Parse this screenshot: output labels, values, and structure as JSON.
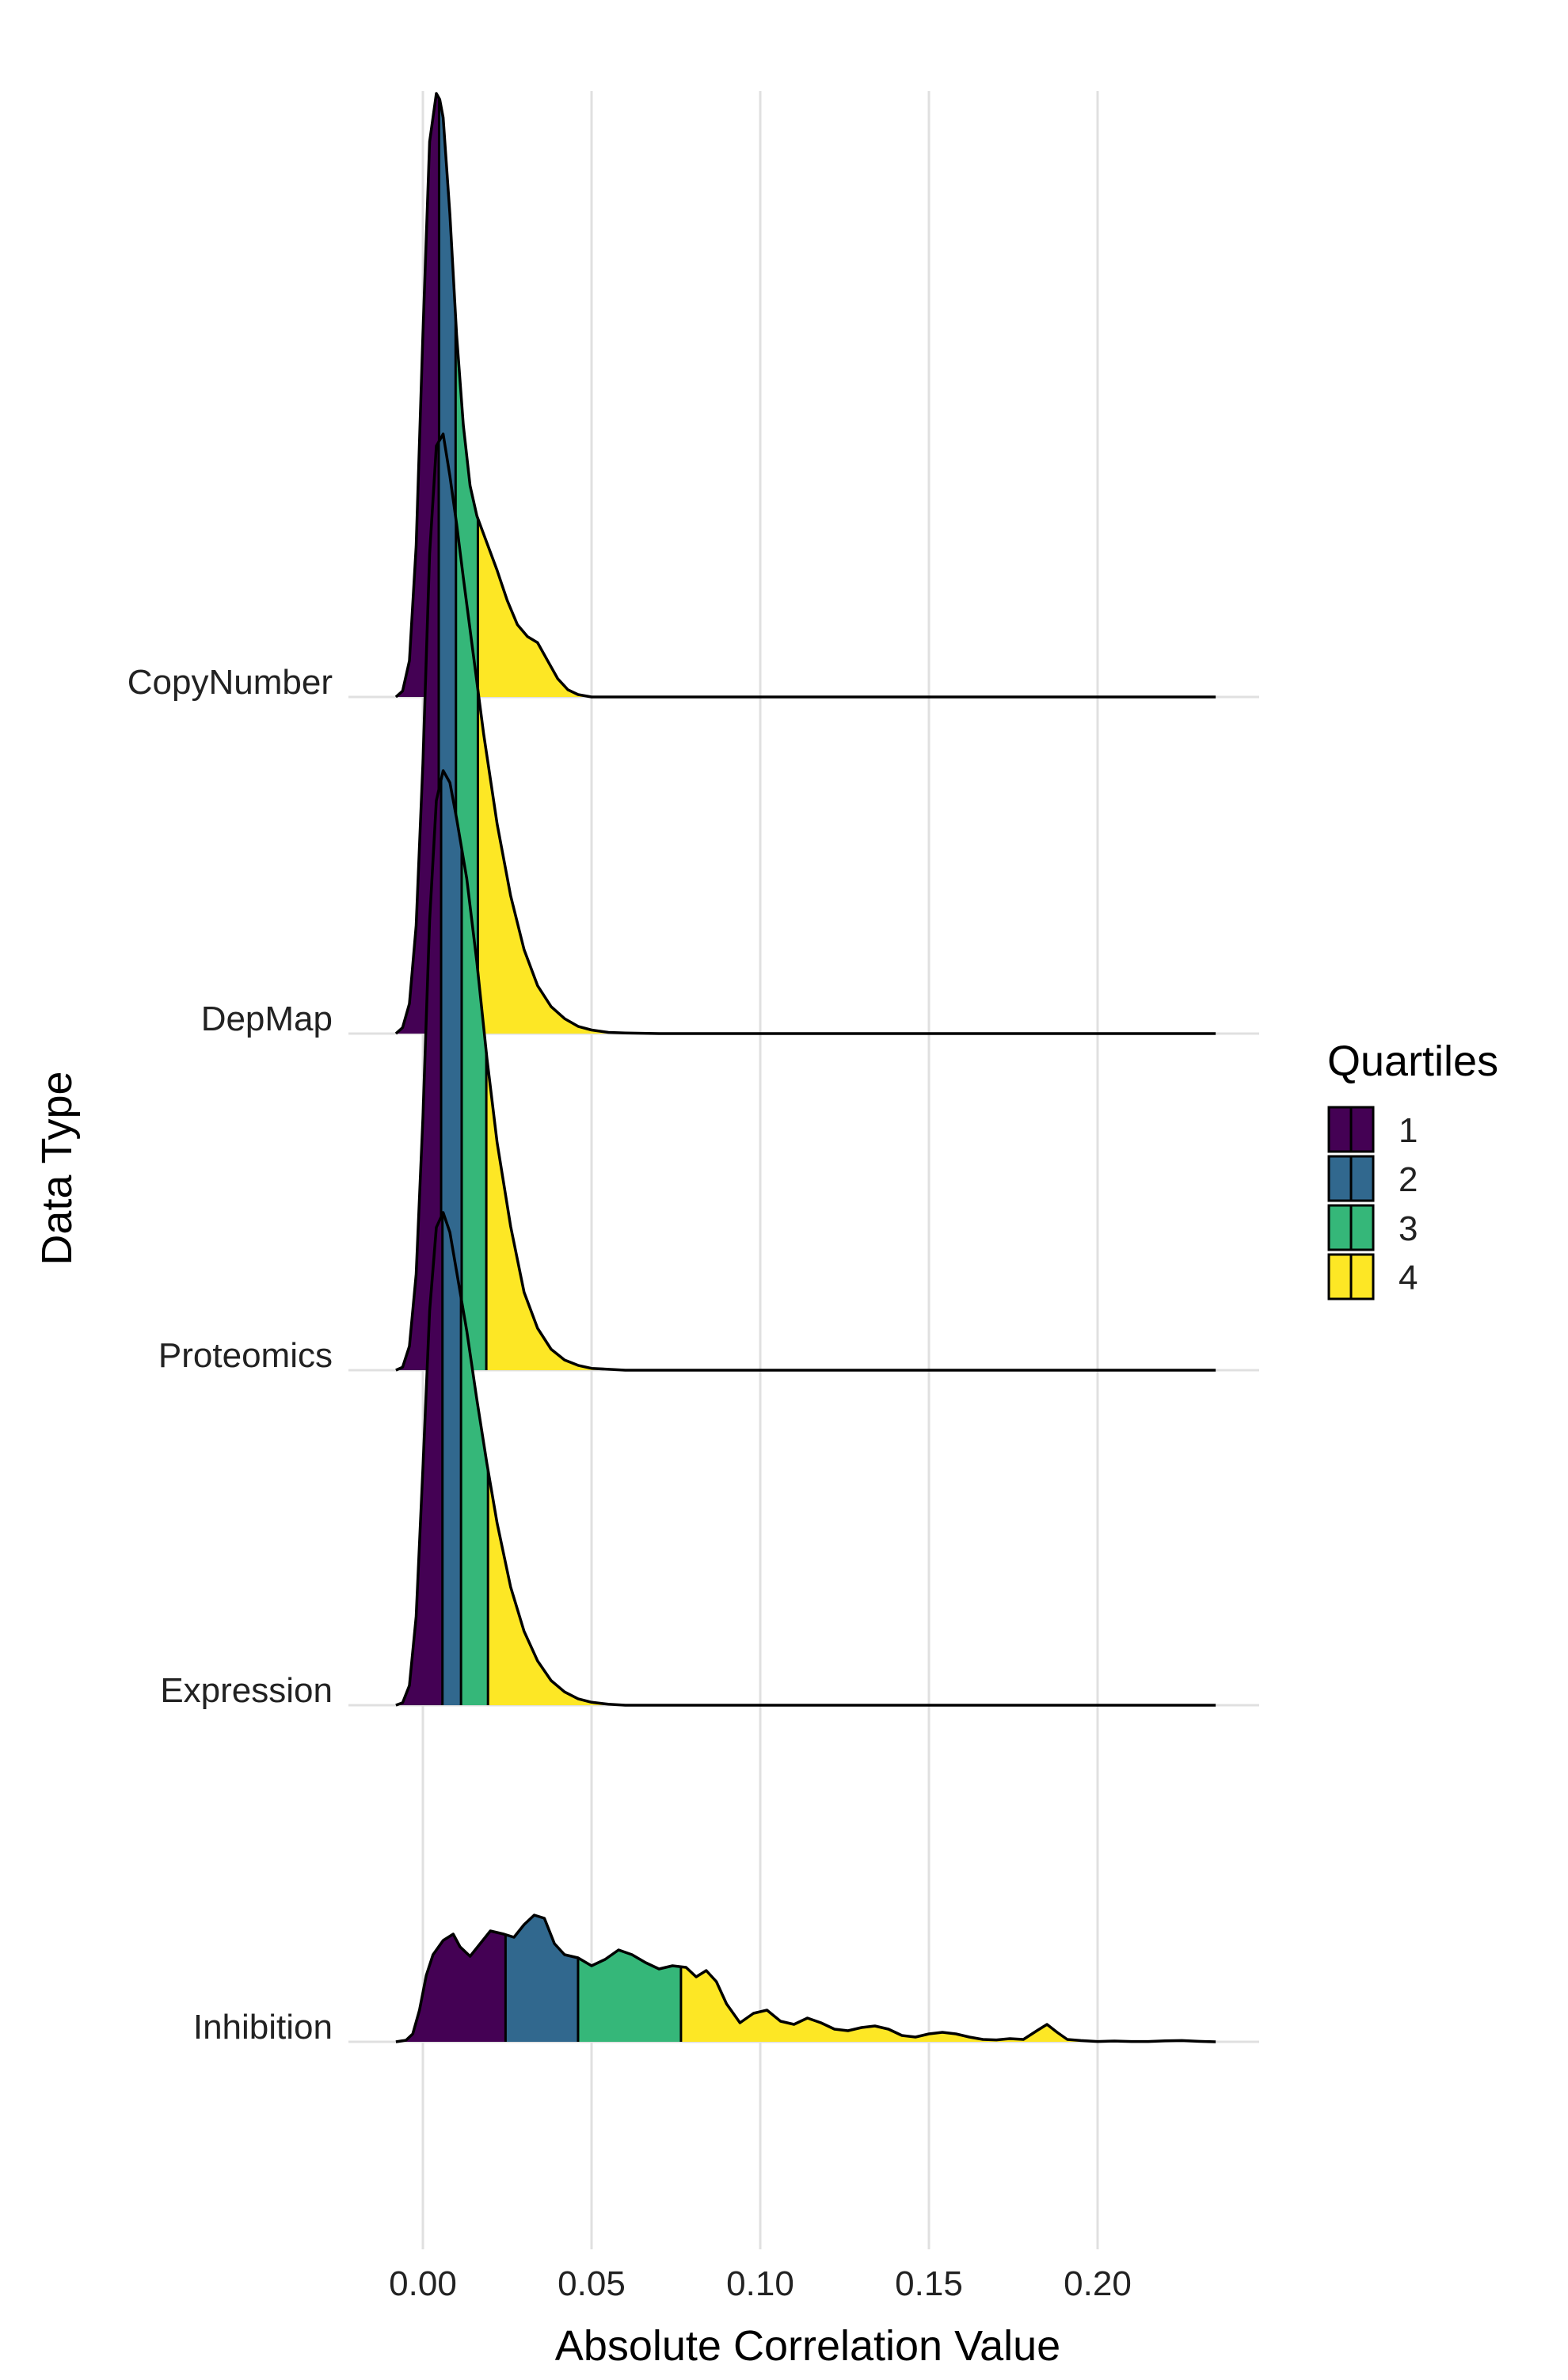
{
  "chart_data": {
    "type": "ridgeline",
    "title": "",
    "xlabel": "Absolute Correlation Value",
    "ylabel": "Data Type",
    "xlim": [
      -0.0085,
      0.2325
    ],
    "xticks": [
      0.0,
      0.05,
      0.1,
      0.15,
      0.2
    ],
    "xtick_labels": [
      "0.00",
      "0.05",
      "0.10",
      "0.15",
      "0.20"
    ],
    "grid": true,
    "legend": {
      "title": "Quartiles",
      "position": "right",
      "entries": [
        {
          "label": "1",
          "color": "#440154"
        },
        {
          "label": "2",
          "color": "#31688E"
        },
        {
          "label": "3",
          "color": "#35B779"
        },
        {
          "label": "4",
          "color": "#FDE725"
        }
      ]
    },
    "series": [
      {
        "name": "CopyNumber",
        "quartile_breaks": [
          0.0048,
          0.0097,
          0.0163
        ],
        "x": [
          -0.008,
          -0.006,
          -0.004,
          -0.002,
          0.0,
          0.002,
          0.004,
          0.005,
          0.006,
          0.008,
          0.01,
          0.012,
          0.014,
          0.016,
          0.018,
          0.02,
          0.022,
          0.025,
          0.028,
          0.031,
          0.034,
          0.037,
          0.04,
          0.043,
          0.046,
          0.05,
          0.06,
          0.1,
          0.15,
          0.2,
          0.235
        ],
        "y": [
          0.0,
          0.01,
          0.06,
          0.25,
          0.6,
          0.92,
          1.0,
          0.99,
          0.96,
          0.8,
          0.6,
          0.45,
          0.35,
          0.3,
          0.27,
          0.24,
          0.21,
          0.16,
          0.12,
          0.1,
          0.09,
          0.06,
          0.03,
          0.012,
          0.004,
          0.0,
          0.0,
          0.0,
          0.0,
          0.0,
          0.0
        ]
      },
      {
        "name": "DepMap",
        "quartile_breaks": [
          0.0047,
          0.0098,
          0.0163
        ],
        "x": [
          -0.008,
          -0.006,
          -0.004,
          -0.002,
          0.0,
          0.002,
          0.004,
          0.006,
          0.008,
          0.01,
          0.012,
          0.015,
          0.018,
          0.022,
          0.026,
          0.03,
          0.034,
          0.038,
          0.042,
          0.046,
          0.05,
          0.055,
          0.06,
          0.07,
          0.1,
          0.15,
          0.2,
          0.235
        ],
        "y": [
          0.0,
          0.01,
          0.05,
          0.18,
          0.45,
          0.8,
          0.98,
          1.0,
          0.93,
          0.85,
          0.76,
          0.63,
          0.5,
          0.35,
          0.23,
          0.14,
          0.08,
          0.045,
          0.025,
          0.012,
          0.006,
          0.002,
          0.001,
          0.0,
          0.0,
          0.0,
          0.0,
          0.0
        ]
      },
      {
        "name": "Proteomics",
        "quartile_breaks": [
          0.0054,
          0.0115,
          0.0188
        ],
        "x": [
          -0.008,
          -0.006,
          -0.004,
          -0.002,
          0.0,
          0.002,
          0.004,
          0.006,
          0.008,
          0.01,
          0.013,
          0.016,
          0.019,
          0.022,
          0.026,
          0.03,
          0.034,
          0.038,
          0.042,
          0.046,
          0.05,
          0.06,
          0.1,
          0.15,
          0.2,
          0.235
        ],
        "y": [
          0.0,
          0.005,
          0.04,
          0.16,
          0.42,
          0.75,
          0.95,
          1.0,
          0.98,
          0.92,
          0.82,
          0.68,
          0.52,
          0.38,
          0.24,
          0.13,
          0.07,
          0.035,
          0.017,
          0.008,
          0.003,
          0.0,
          0.0,
          0.0,
          0.0,
          0.0
        ]
      },
      {
        "name": "Expression",
        "quartile_breaks": [
          0.0058,
          0.0113,
          0.0193
        ],
        "x": [
          -0.008,
          -0.006,
          -0.004,
          -0.002,
          0.0,
          0.002,
          0.004,
          0.006,
          0.008,
          0.01,
          0.013,
          0.016,
          0.019,
          0.022,
          0.026,
          0.03,
          0.034,
          0.038,
          0.042,
          0.046,
          0.05,
          0.055,
          0.06,
          0.1,
          0.15,
          0.2,
          0.235
        ],
        "y": [
          0.0,
          0.005,
          0.04,
          0.18,
          0.48,
          0.8,
          0.97,
          1.0,
          0.96,
          0.88,
          0.76,
          0.62,
          0.49,
          0.37,
          0.24,
          0.15,
          0.09,
          0.05,
          0.027,
          0.013,
          0.006,
          0.002,
          0.0,
          0.0,
          0.0,
          0.0,
          0.0
        ]
      },
      {
        "name": "Inhibition",
        "quartile_breaks": [
          0.0245,
          0.046,
          0.0765
        ],
        "x": [
          -0.008,
          -0.005,
          -0.003,
          -0.001,
          0.001,
          0.003,
          0.006,
          0.009,
          0.011,
          0.014,
          0.017,
          0.02,
          0.024,
          0.027,
          0.03,
          0.033,
          0.036,
          0.039,
          0.042,
          0.046,
          0.05,
          0.054,
          0.058,
          0.062,
          0.066,
          0.07,
          0.074,
          0.078,
          0.081,
          0.084,
          0.087,
          0.09,
          0.094,
          0.098,
          0.102,
          0.106,
          0.11,
          0.114,
          0.118,
          0.122,
          0.126,
          0.13,
          0.134,
          0.138,
          0.142,
          0.146,
          0.15,
          0.154,
          0.158,
          0.162,
          0.166,
          0.17,
          0.174,
          0.178,
          0.182,
          0.185,
          0.188,
          0.191,
          0.195,
          0.2,
          0.205,
          0.21,
          0.215,
          0.22,
          0.225,
          0.23,
          0.235
        ],
        "y": [
          0.0,
          0.01,
          0.05,
          0.2,
          0.42,
          0.55,
          0.64,
          0.68,
          0.6,
          0.54,
          0.62,
          0.7,
          0.68,
          0.66,
          0.74,
          0.8,
          0.78,
          0.62,
          0.55,
          0.53,
          0.48,
          0.52,
          0.58,
          0.55,
          0.5,
          0.46,
          0.48,
          0.47,
          0.41,
          0.45,
          0.38,
          0.24,
          0.12,
          0.18,
          0.2,
          0.13,
          0.11,
          0.15,
          0.12,
          0.08,
          0.07,
          0.09,
          0.1,
          0.08,
          0.04,
          0.03,
          0.05,
          0.06,
          0.05,
          0.03,
          0.015,
          0.012,
          0.02,
          0.015,
          0.07,
          0.11,
          0.06,
          0.015,
          0.008,
          0.002,
          0.005,
          0.002,
          0.002,
          0.006,
          0.008,
          0.003,
          0.0
        ]
      }
    ]
  }
}
